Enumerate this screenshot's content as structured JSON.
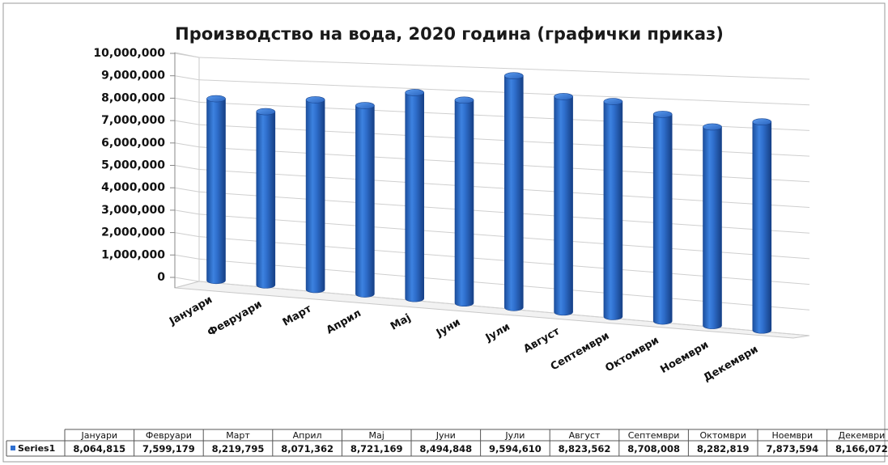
{
  "chart_data": {
    "type": "bar",
    "style": "3d-cylinder",
    "title": "Производство на вода, 2020 година (графички приказ)",
    "categories": [
      "Јануари",
      "Февруари",
      "Март",
      "Април",
      "Мај",
      "Јуни",
      "Јули",
      "Август",
      "Септември",
      "Октомври",
      "Ноември",
      "Декември"
    ],
    "series": [
      {
        "name": "Series1",
        "values": [
          8064815,
          7599179,
          8219795,
          8071362,
          8721169,
          8494848,
          9594610,
          8823562,
          8708008,
          8282819,
          7873594,
          8166072
        ],
        "color": "#2e6fd0"
      }
    ],
    "value_labels": [
      "8,064,815",
      "7,599,179",
      "8,219,795",
      "8,071,362",
      "8,721,169",
      "8,494,848",
      "9,594,610",
      "8,823,562",
      "8,708,008",
      "8,282,819",
      "7,873,594",
      "8,166,072"
    ],
    "y_ticks": [
      "0",
      "1,000,000",
      "2,000,000",
      "3,000,000",
      "4,000,000",
      "5,000,000",
      "6,000,000",
      "7,000,000",
      "8,000,000",
      "9,000,000",
      "10,000,000"
    ],
    "ylim": [
      0,
      10000000
    ],
    "grid": true,
    "legend": "data-table-left"
  }
}
